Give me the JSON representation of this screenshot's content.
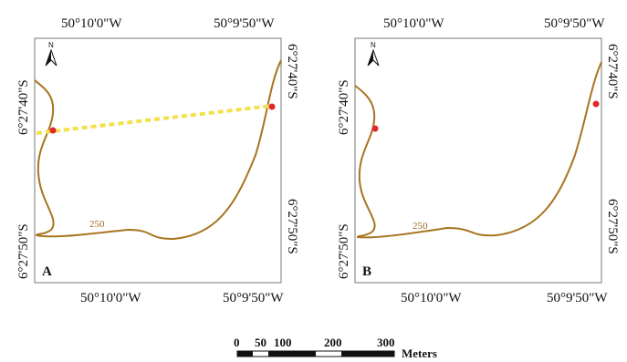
{
  "panel_a": {
    "label": "A",
    "top_lon_left": "50°10'0\"W",
    "top_lon_right": "50°9'50\"W",
    "bottom_lon_left": "50°10'0\"W",
    "bottom_lon_right": "50°9'50\"W",
    "left_lat_top": "6°27'40\"S",
    "left_lat_bottom": "6°27'50\"S",
    "right_lat_top": "6°27'40\"S",
    "right_lat_bottom": "6°27'50\"S",
    "contour_label": "250",
    "north_label": "N"
  },
  "panel_b": {
    "label": "B",
    "top_lon_left": "50°10'0\"W",
    "top_lon_right": "50°9'50\"W",
    "bottom_lon_left": "50°10'0\"W",
    "bottom_lon_right": "50°9'50\"W",
    "left_lat_top": "6°27'40\"S",
    "left_lat_bottom": "6°27'50\"S",
    "right_lat_top": "6°27'40\"S",
    "right_lat_bottom": "6°27'50\"S",
    "contour_label": "250",
    "north_label": "N"
  },
  "scale_bar": {
    "ticks": [
      "0",
      "50",
      "100",
      "200",
      "300"
    ],
    "unit": "Meters"
  },
  "colors": {
    "contour": "#a8741f",
    "transect": "#f2e14a",
    "point": "#e0282a"
  }
}
